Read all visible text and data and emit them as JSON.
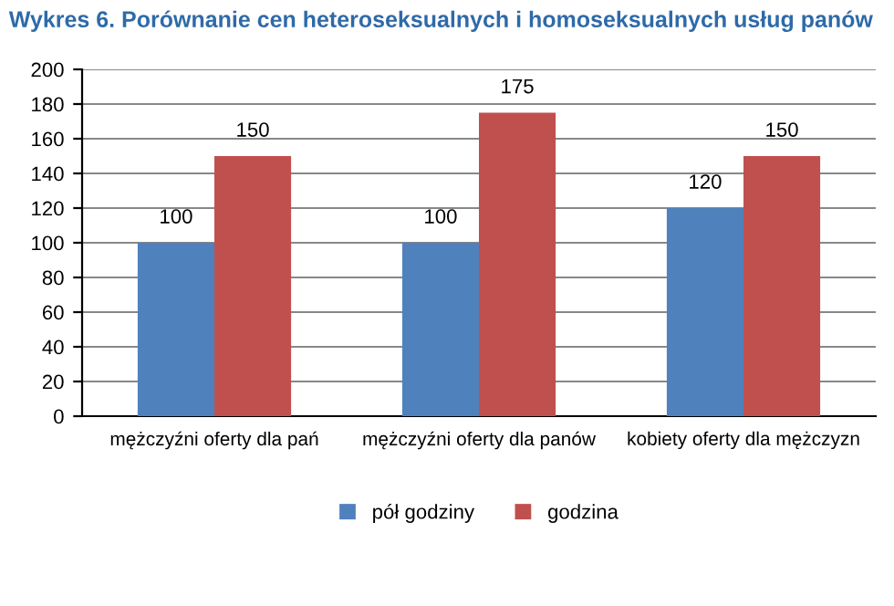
{
  "chart_data": {
    "type": "bar",
    "title": "Wykres 6. Porównanie cen heteroseksualnych i homoseksualnych usług panów",
    "categories": [
      "mężczyźni oferty dla pań",
      "mężczyźni oferty dla panów",
      "kobiety oferty dla mężczyzn"
    ],
    "series": [
      {
        "name": "pół godziny",
        "color": "#4f81bd",
        "values": [
          100,
          100,
          120
        ]
      },
      {
        "name": "godzina",
        "color": "#c0504d",
        "values": [
          150,
          175,
          150
        ]
      }
    ],
    "ylim": [
      0,
      200
    ],
    "yticks": [
      0,
      20,
      40,
      60,
      80,
      100,
      120,
      140,
      160,
      180,
      200
    ],
    "grid": "y",
    "legend": "bottom",
    "data_labels": true
  }
}
